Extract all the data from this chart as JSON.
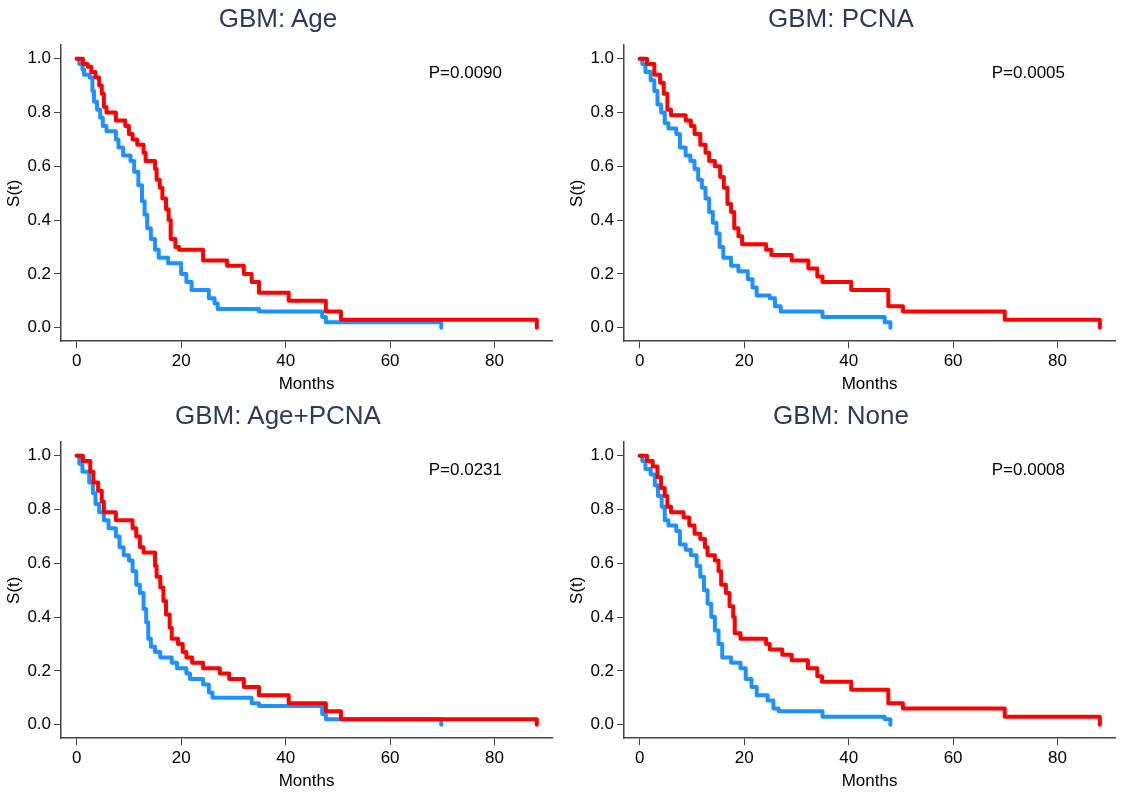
{
  "chart_data": [
    {
      "type": "step",
      "title": "GBM: Age",
      "xlabel": "Months",
      "ylabel": "S(t)",
      "annotations": [
        "P=0.0090"
      ],
      "xlim": [
        -3,
        91
      ],
      "ylim": [
        -0.05,
        1.05
      ],
      "xticks": [
        0,
        20,
        40,
        60,
        80
      ],
      "yticks": [
        {
          "value": 0,
          "label": "0.0"
        },
        {
          "value": 0.2,
          "label": "0.2"
        },
        {
          "value": 0.4,
          "label": "0.4"
        },
        {
          "value": 0.6,
          "label": "0.6"
        },
        {
          "value": 0.8,
          "label": "0.8"
        },
        {
          "value": 1,
          "label": "1.0"
        }
      ],
      "grid": false,
      "series": [
        {
          "color": "#ff0000",
          "x": [
            0,
            1.2,
            2.1,
            2.8,
            3.6,
            4.3,
            4.8,
            5.2,
            5.7,
            7.5,
            9.3,
            10,
            10.7,
            11.6,
            12.8,
            13.2,
            15,
            15.3,
            15.9,
            16.4,
            17.1,
            17.6,
            18,
            18.9,
            19.6,
            24.2,
            28.8,
            32,
            33.5,
            34.9,
            40.6,
            47.7,
            50.6,
            88.1
          ],
          "values": [
            1.0,
            0.98,
            0.97,
            0.95,
            0.93,
            0.9,
            0.87,
            0.82,
            0.8,
            0.77,
            0.75,
            0.72,
            0.7,
            0.68,
            0.65,
            0.62,
            0.59,
            0.55,
            0.52,
            0.48,
            0.44,
            0.4,
            0.33,
            0.3,
            0.29,
            0.25,
            0.23,
            0.2,
            0.17,
            0.13,
            0.1,
            0.06,
            0.03,
            0.0
          ]
        },
        {
          "color": "#1e90ff",
          "x": [
            0,
            0.5,
            1.1,
            1.4,
            2.5,
            3,
            3.3,
            3.9,
            4.5,
            5,
            5.7,
            7.5,
            8,
            8.9,
            10.3,
            11,
            11.8,
            12.5,
            13,
            13.5,
            14.2,
            15,
            15.7,
            17.5,
            20,
            21,
            22,
            25.3,
            26.4,
            27,
            34.9,
            47,
            47.7,
            69.8
          ],
          "values": [
            1.0,
            0.98,
            0.96,
            0.94,
            0.93,
            0.88,
            0.84,
            0.81,
            0.78,
            0.75,
            0.73,
            0.7,
            0.67,
            0.64,
            0.62,
            0.58,
            0.53,
            0.47,
            0.42,
            0.37,
            0.33,
            0.29,
            0.26,
            0.24,
            0.2,
            0.17,
            0.14,
            0.11,
            0.09,
            0.07,
            0.06,
            0.04,
            0.02,
            0.0
          ]
        }
      ]
    },
    {
      "type": "step",
      "title": "GBM: PCNA",
      "xlabel": "Months",
      "ylabel": "S(t)",
      "annotations": [
        "P=0.0005"
      ],
      "xlim": [
        -3,
        91
      ],
      "ylim": [
        -0.05,
        1.05
      ],
      "xticks": [
        0,
        20,
        40,
        60,
        80
      ],
      "yticks": [
        {
          "value": 0,
          "label": "0.0"
        },
        {
          "value": 0.2,
          "label": "0.2"
        },
        {
          "value": 0.4,
          "label": "0.4"
        },
        {
          "value": 0.6,
          "label": "0.6"
        },
        {
          "value": 0.8,
          "label": "0.8"
        },
        {
          "value": 1,
          "label": "1.0"
        }
      ],
      "grid": false,
      "series": [
        {
          "color": "#ff0000",
          "x": [
            0,
            1.4,
            2.8,
            3.9,
            4.6,
            5.3,
            6,
            8.8,
            9.8,
            10.5,
            11.6,
            12.6,
            13.3,
            14.4,
            15.4,
            16.1,
            16.8,
            17.5,
            18.1,
            18.9,
            19.6,
            24.2,
            25.2,
            29.1,
            32.3,
            34,
            35,
            40.5,
            47.6,
            50.4,
            69.9,
            88.1
          ],
          "values": [
            1.0,
            0.98,
            0.94,
            0.91,
            0.87,
            0.81,
            0.79,
            0.77,
            0.75,
            0.72,
            0.68,
            0.65,
            0.62,
            0.6,
            0.56,
            0.52,
            0.46,
            0.43,
            0.37,
            0.34,
            0.31,
            0.29,
            0.27,
            0.25,
            0.22,
            0.19,
            0.17,
            0.14,
            0.08,
            0.06,
            0.03,
            0.0
          ]
        },
        {
          "color": "#1e90ff",
          "x": [
            0,
            0.5,
            1.1,
            2.1,
            2.8,
            3.4,
            4.1,
            4.8,
            5.5,
            7,
            7.7,
            8.8,
            9.7,
            10.5,
            11.2,
            11.9,
            12.6,
            13.3,
            14,
            14.7,
            15.3,
            16,
            17.5,
            18.9,
            20.7,
            21.6,
            22.4,
            24.9,
            25.9,
            27,
            35,
            46.9,
            48
          ],
          "values": [
            1.0,
            0.98,
            0.95,
            0.92,
            0.88,
            0.83,
            0.8,
            0.76,
            0.74,
            0.72,
            0.67,
            0.64,
            0.62,
            0.59,
            0.55,
            0.52,
            0.48,
            0.43,
            0.39,
            0.35,
            0.3,
            0.26,
            0.23,
            0.21,
            0.18,
            0.15,
            0.12,
            0.11,
            0.08,
            0.06,
            0.04,
            0.02,
            0.0
          ]
        }
      ]
    },
    {
      "type": "step",
      "title": "GBM: Age+PCNA",
      "xlabel": "Months",
      "ylabel": "S(t)",
      "annotations": [
        "P=0.0231"
      ],
      "xlim": [
        -3,
        91
      ],
      "ylim": [
        -0.05,
        1.05
      ],
      "xticks": [
        0,
        20,
        40,
        60,
        80
      ],
      "yticks": [
        {
          "value": 0,
          "label": "0.0"
        },
        {
          "value": 0.2,
          "label": "0.2"
        },
        {
          "value": 0.4,
          "label": "0.4"
        },
        {
          "value": 0.6,
          "label": "0.6"
        },
        {
          "value": 0.8,
          "label": "0.8"
        },
        {
          "value": 1,
          "label": "1.0"
        }
      ],
      "grid": false,
      "series": [
        {
          "color": "#ff0000",
          "x": [
            0,
            1.2,
            2.6,
            3.2,
            4.1,
            4.8,
            5.2,
            7.5,
            10.7,
            11.4,
            12.1,
            12.8,
            15,
            15.3,
            16,
            16.6,
            17.1,
            17.8,
            18.2,
            19.4,
            20.3,
            21,
            22.1,
            24.2,
            27.4,
            29.2,
            32,
            34.9,
            40.6,
            47.7,
            50.6,
            88.1
          ],
          "values": [
            1.0,
            0.98,
            0.94,
            0.9,
            0.87,
            0.83,
            0.79,
            0.76,
            0.73,
            0.7,
            0.66,
            0.64,
            0.59,
            0.55,
            0.51,
            0.46,
            0.41,
            0.36,
            0.32,
            0.3,
            0.27,
            0.25,
            0.23,
            0.21,
            0.19,
            0.17,
            0.14,
            0.11,
            0.08,
            0.05,
            0.02,
            0.0
          ]
        },
        {
          "color": "#1e90ff",
          "x": [
            0,
            0.5,
            1.1,
            2.4,
            3.1,
            3.6,
            4.3,
            5.2,
            6.1,
            7.5,
            8.2,
            9,
            10,
            10.7,
            11.4,
            12.1,
            12.8,
            13.3,
            13.7,
            14.2,
            15,
            16,
            18.2,
            19.2,
            21,
            21.7,
            24.2,
            25.3,
            26,
            33.5,
            34.9,
            47,
            47.7,
            69.8
          ],
          "values": [
            1.0,
            0.97,
            0.94,
            0.9,
            0.86,
            0.82,
            0.79,
            0.76,
            0.73,
            0.7,
            0.66,
            0.63,
            0.61,
            0.57,
            0.52,
            0.49,
            0.43,
            0.38,
            0.32,
            0.29,
            0.27,
            0.25,
            0.23,
            0.21,
            0.19,
            0.17,
            0.15,
            0.12,
            0.1,
            0.08,
            0.07,
            0.04,
            0.02,
            0.0
          ]
        }
      ]
    },
    {
      "type": "step",
      "title": "GBM: None",
      "xlabel": "Months",
      "ylabel": "S(t)",
      "annotations": [
        "P=0.0008"
      ],
      "xlim": [
        -3,
        91
      ],
      "ylim": [
        -0.05,
        1.05
      ],
      "xticks": [
        0,
        20,
        40,
        60,
        80
      ],
      "yticks": [
        {
          "value": 0,
          "label": "0.0"
        },
        {
          "value": 0.2,
          "label": "0.2"
        },
        {
          "value": 0.4,
          "label": "0.4"
        },
        {
          "value": 0.6,
          "label": "0.6"
        },
        {
          "value": 0.8,
          "label": "0.8"
        },
        {
          "value": 1,
          "label": "1.0"
        }
      ],
      "grid": false,
      "series": [
        {
          "color": "#ff0000",
          "x": [
            0,
            1.4,
            2.5,
            3.4,
            4.1,
            4.8,
            5.3,
            6,
            8.4,
            9.5,
            10.5,
            11.6,
            12.5,
            13,
            14.4,
            15.1,
            15.6,
            16.5,
            17.2,
            17.9,
            18.2,
            19.3,
            24.2,
            24.9,
            27.3,
            29.1,
            32.2,
            34,
            34.9,
            40.5,
            47.6,
            50.4,
            69.9,
            88.1
          ],
          "values": [
            1.0,
            0.98,
            0.96,
            0.92,
            0.88,
            0.85,
            0.81,
            0.79,
            0.77,
            0.74,
            0.71,
            0.69,
            0.66,
            0.63,
            0.61,
            0.57,
            0.52,
            0.49,
            0.44,
            0.4,
            0.34,
            0.32,
            0.3,
            0.28,
            0.26,
            0.24,
            0.21,
            0.18,
            0.16,
            0.13,
            0.08,
            0.06,
            0.03,
            0.0
          ]
        },
        {
          "color": "#1e90ff",
          "x": [
            0,
            0.5,
            1.1,
            2.1,
            2.9,
            3.5,
            4.2,
            4.8,
            5.5,
            7,
            7.7,
            8.8,
            9.8,
            10.9,
            11.6,
            12.3,
            13,
            13.7,
            14.4,
            15.1,
            15.8,
            17.5,
            19.3,
            20.3,
            21.4,
            22.4,
            24.5,
            25.6,
            26.6,
            35,
            46.9,
            48
          ],
          "values": [
            1.0,
            0.98,
            0.95,
            0.93,
            0.89,
            0.85,
            0.81,
            0.76,
            0.74,
            0.72,
            0.67,
            0.65,
            0.63,
            0.59,
            0.55,
            0.5,
            0.45,
            0.4,
            0.35,
            0.3,
            0.25,
            0.23,
            0.21,
            0.17,
            0.14,
            0.11,
            0.09,
            0.06,
            0.05,
            0.03,
            0.02,
            0.0
          ]
        }
      ]
    }
  ]
}
